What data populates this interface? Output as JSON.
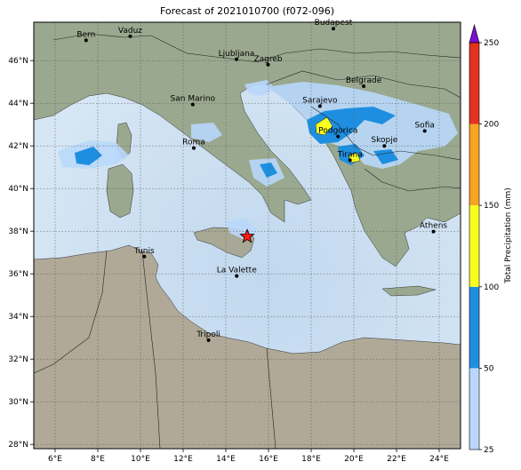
{
  "title": "Forecast of 2021010700 (f072-096)",
  "map": {
    "lon_range": [
      5,
      25
    ],
    "lat_range": [
      27.8,
      47.8
    ],
    "lon_ticks": [
      {
        "value": 6,
        "label": "6°E"
      },
      {
        "value": 8,
        "label": "8°E"
      },
      {
        "value": 10,
        "label": "10°E"
      },
      {
        "value": 12,
        "label": "12°E"
      },
      {
        "value": 14,
        "label": "14°E"
      },
      {
        "value": 16,
        "label": "16°E"
      },
      {
        "value": 18,
        "label": "18°E"
      },
      {
        "value": 20,
        "label": "20°E"
      },
      {
        "value": 22,
        "label": "22°E"
      },
      {
        "value": 24,
        "label": "24°E"
      }
    ],
    "lat_ticks": [
      {
        "value": 28,
        "label": "28°N"
      },
      {
        "value": 30,
        "label": "30°N"
      },
      {
        "value": 32,
        "label": "32°N"
      },
      {
        "value": 34,
        "label": "34°N"
      },
      {
        "value": 36,
        "label": "36°N"
      },
      {
        "value": 38,
        "label": "38°N"
      },
      {
        "value": 40,
        "label": "40°N"
      },
      {
        "value": 42,
        "label": "42°N"
      },
      {
        "value": 44,
        "label": "44°N"
      },
      {
        "value": 46,
        "label": "46°N"
      }
    ],
    "grid": true,
    "cities": [
      {
        "name": "Bern",
        "lon": 7.45,
        "lat": 46.95
      },
      {
        "name": "Vaduz",
        "lon": 9.52,
        "lat": 47.14
      },
      {
        "name": "Budapest",
        "lon": 19.04,
        "lat": 47.5
      },
      {
        "name": "Ljubljana",
        "lon": 14.5,
        "lat": 46.06
      },
      {
        "name": "Zagreb",
        "lon": 15.98,
        "lat": 45.81
      },
      {
        "name": "Belgrade",
        "lon": 20.46,
        "lat": 44.8
      },
      {
        "name": "San Marino",
        "lon": 12.45,
        "lat": 43.94
      },
      {
        "name": "Sarajevo",
        "lon": 18.41,
        "lat": 43.86
      },
      {
        "name": "Sofia",
        "lon": 23.32,
        "lat": 42.7
      },
      {
        "name": "Podgorica",
        "lon": 19.26,
        "lat": 42.44
      },
      {
        "name": "Roma",
        "lon": 12.5,
        "lat": 41.9
      },
      {
        "name": "Skopje",
        "lon": 21.43,
        "lat": 42.0
      },
      {
        "name": "Tirana",
        "lon": 19.82,
        "lat": 41.33
      },
      {
        "name": "Athens",
        "lon": 23.73,
        "lat": 37.98
      },
      {
        "name": "Tunis",
        "lon": 10.18,
        "lat": 36.81
      },
      {
        "name": "La Valette",
        "lon": 14.51,
        "lat": 35.9
      },
      {
        "name": "Tripoli",
        "lon": 13.19,
        "lat": 32.89
      }
    ],
    "marker": {
      "symbol": "red-star",
      "lon": 15.0,
      "lat": 37.75
    }
  },
  "colorbar": {
    "label": "Total Precipitation (mm)",
    "ticks": [
      "25",
      "50",
      "100",
      "150",
      "200",
      "250"
    ],
    "levels": [
      {
        "from": 25,
        "to": 50,
        "color": "#b9d8fb"
      },
      {
        "from": 50,
        "to": 100,
        "color": "#1e8fe0"
      },
      {
        "from": 100,
        "to": 150,
        "color": "#f8ff1e"
      },
      {
        "from": 150,
        "to": 200,
        "color": "#f6a421"
      },
      {
        "from": 200,
        "to": 250,
        "color": "#e3321e"
      }
    ],
    "extend_color": "#7a0fd0"
  },
  "colors": {
    "sea": "#c9def0",
    "sea_dark": "#a9c8e6",
    "land": "#a9a392",
    "land_green": "#8fa98c",
    "border": "#222222"
  }
}
